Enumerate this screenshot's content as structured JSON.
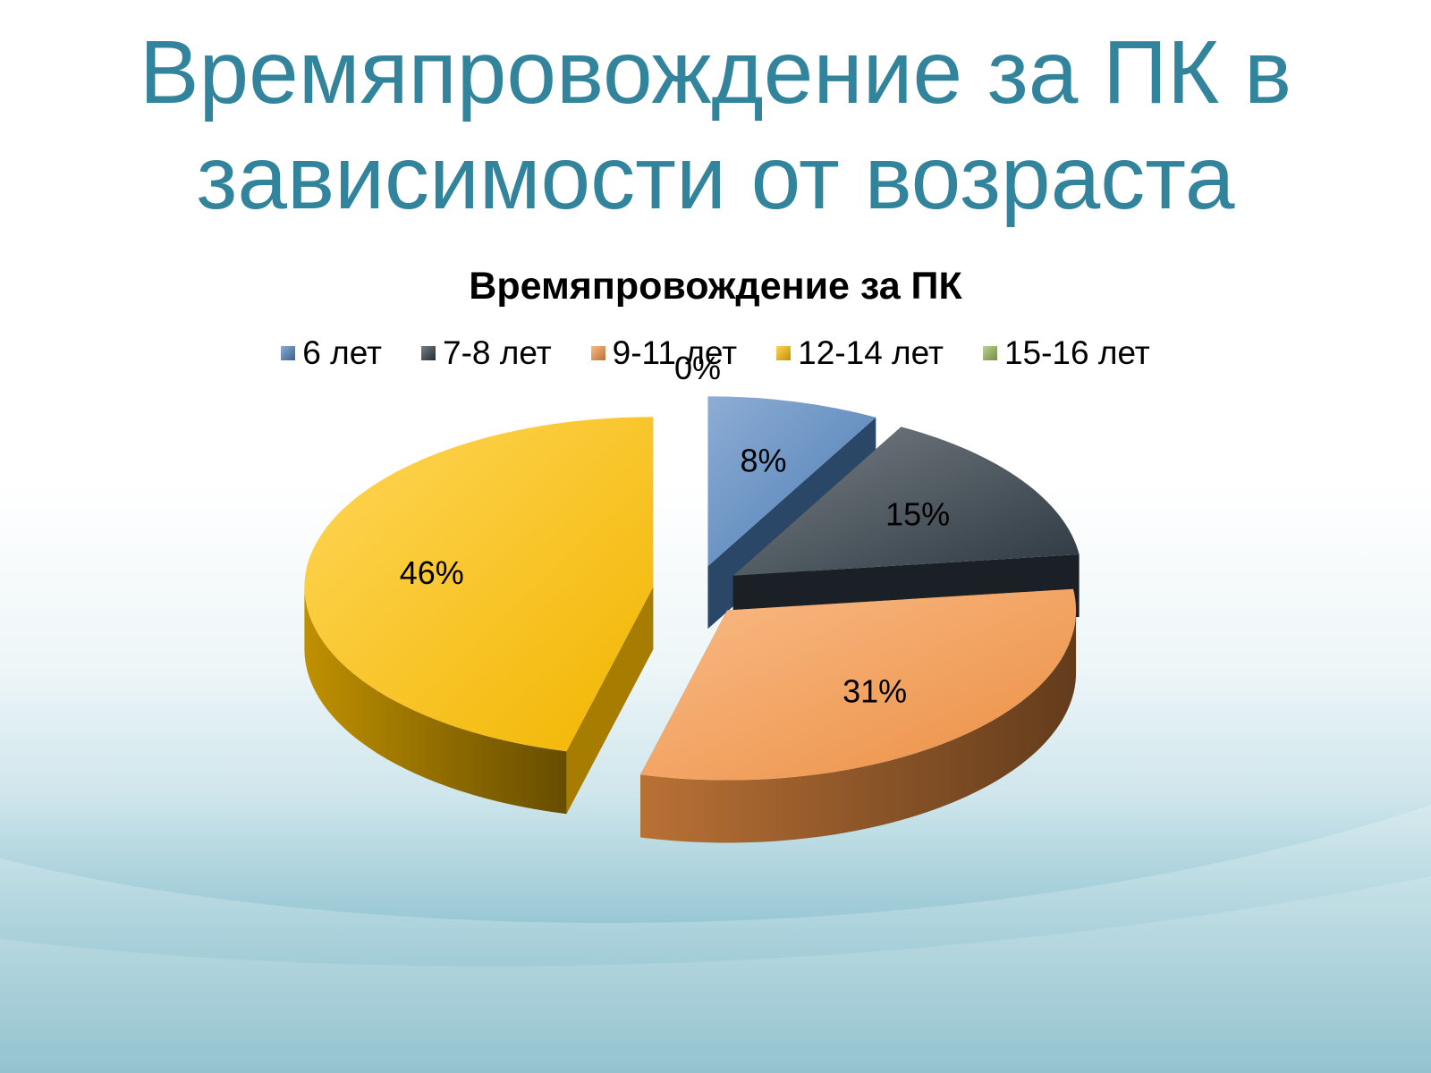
{
  "slide": {
    "title_line1": "Времяпровождение за ПК в",
    "title_line2": "зависимости от возраста"
  },
  "colors": {
    "title": "#31849b",
    "6 лет": "#4f81bd",
    "7-8 лет": "#2f3b44",
    "9-11 лет": "#f79646",
    "12-14 лет": "#ffc000",
    "15-16 лет": "#9bbb59"
  },
  "chart_data": {
    "type": "pie",
    "title": "Времяпровождение за ПК",
    "legend_position": "top",
    "categories": [
      "6 лет",
      "7-8 лет",
      "9-11 лет",
      "12-14 лет",
      "15-16 лет"
    ],
    "values": [
      8,
      15,
      31,
      46,
      0
    ],
    "labels": [
      "8%",
      "15%",
      "31%",
      "46%",
      "0%"
    ]
  }
}
